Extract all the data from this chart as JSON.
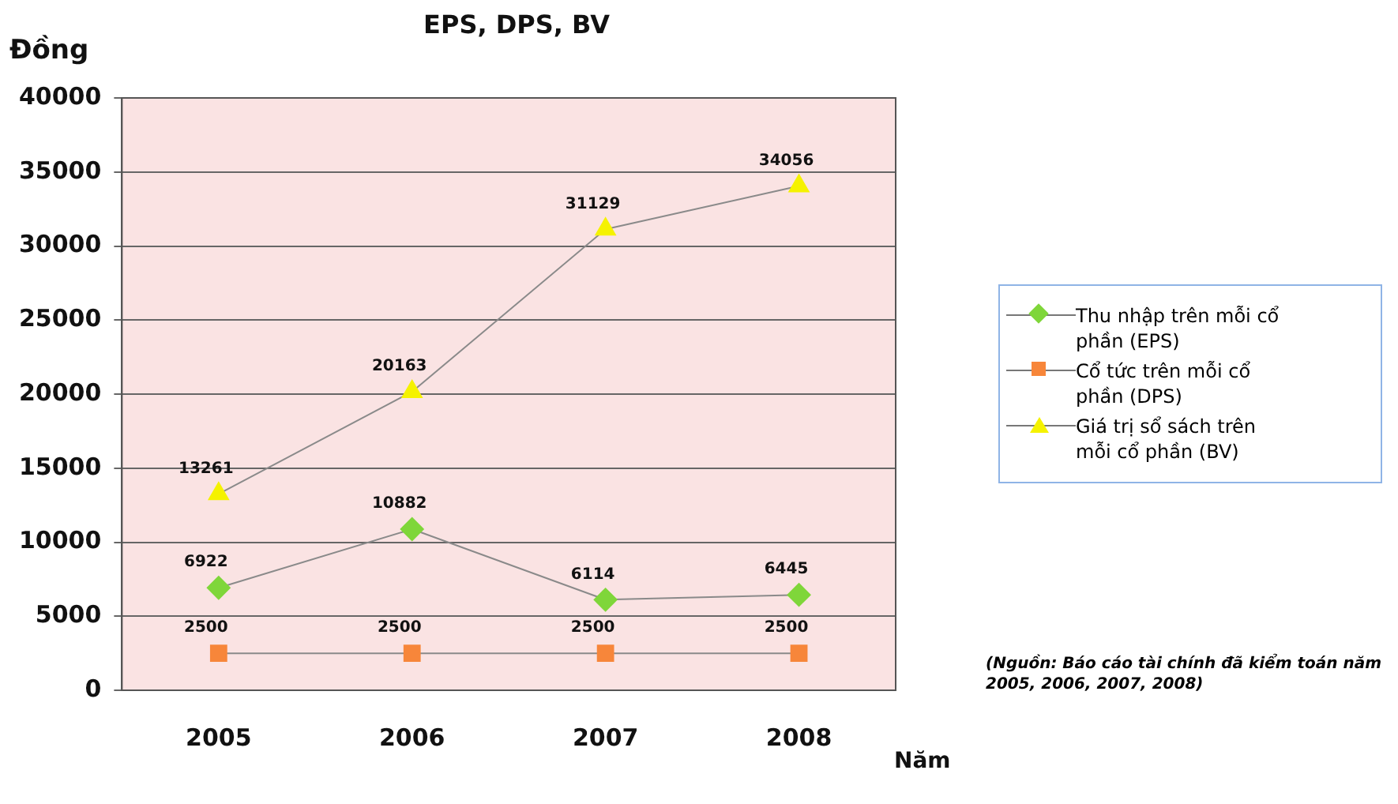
{
  "chart_data": {
    "type": "line",
    "title": "EPS, DPS, BV",
    "ylabel": "Đồng",
    "xlabel": "Năm",
    "categories": [
      "2005",
      "2006",
      "2007",
      "2008"
    ],
    "series": [
      {
        "name": "Thu nhập trên mỗi cổ phần (EPS)",
        "color": "#7fd63a",
        "marker": "diamond",
        "values": [
          6922,
          10882,
          6114,
          6445
        ]
      },
      {
        "name": "Cổ tức trên mỗi cổ phần (DPS)",
        "color": "#f7863a",
        "marker": "square",
        "values": [
          2500,
          2500,
          2500,
          2500
        ]
      },
      {
        "name": "Giá trị sổ sách trên mỗi cổ phần (BV)",
        "color": "#f5f200",
        "marker": "triangle",
        "values": [
          13261,
          20163,
          31129,
          34056
        ]
      }
    ],
    "ylim": [
      0,
      40000
    ],
    "yticks": [
      0,
      5000,
      10000,
      15000,
      20000,
      25000,
      30000,
      35000,
      40000
    ],
    "grid": "y",
    "legend": "right",
    "data_labels": true,
    "annotations": [
      "(Nguồn: Báo cáo tài chính đã kiểm toán năm 2005, 2006, 2007, 2008)"
    ]
  }
}
